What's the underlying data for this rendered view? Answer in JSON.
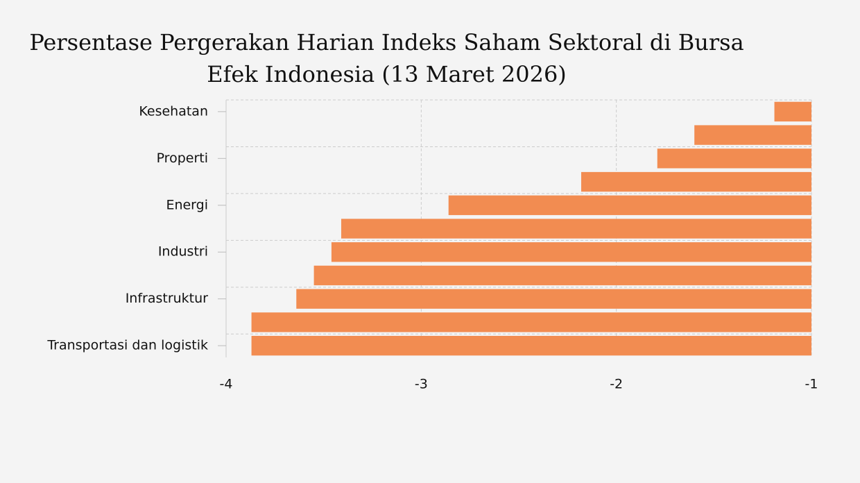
{
  "chart_data": {
    "type": "bar",
    "orientation": "horizontal",
    "title": "Persentase Pergerakan Harian Indeks Saham Sektoral di Bursa Efek Indonesia (13 Maret 2026)",
    "categories": [
      "Kesehatan",
      null,
      "Properti",
      null,
      "Energi",
      null,
      "Industri",
      null,
      "Infrastruktur",
      null,
      "Transportasi dan logistik"
    ],
    "values": [
      -1.19,
      -1.6,
      -1.79,
      -2.18,
      -2.86,
      -3.41,
      -3.46,
      -3.55,
      -3.64,
      -3.87,
      -3.87
    ],
    "color": "#f28c51",
    "xlim": [
      -4,
      -1
    ],
    "xticks": [
      -4,
      -3,
      -2,
      -1
    ],
    "grid": true
  }
}
